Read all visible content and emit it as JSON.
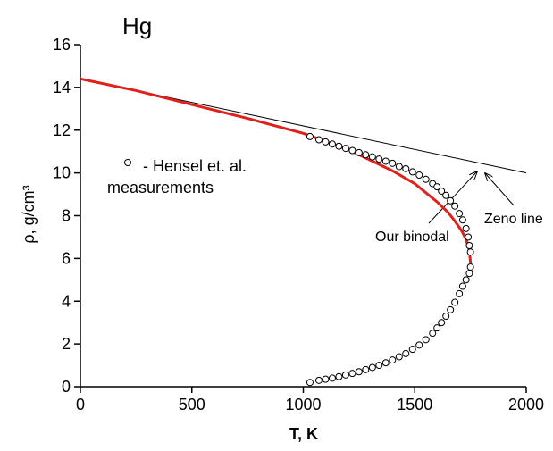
{
  "chart_data": {
    "type": "scatter",
    "title": "Hg",
    "xlabel": "T, K",
    "ylabel": "ρ, g/cm³",
    "xlim": [
      0,
      2000
    ],
    "xticks": [
      0,
      500,
      1000,
      1500,
      2000
    ],
    "ylim": [
      0,
      16
    ],
    "yticks": [
      0,
      2,
      4,
      6,
      8,
      10,
      12,
      14,
      16
    ],
    "annotations": [
      "Our binodal",
      "Zeno line"
    ],
    "series": [
      {
        "mode": "line",
        "color": "#000000",
        "x": [
          0,
          2000
        ],
        "values": [
          14.4,
          10.0
        ]
      },
      {
        "mode": "line",
        "color": "#e0201b",
        "x": [
          0,
          250,
          500,
          750,
          1000,
          1200,
          1400,
          1500,
          1600,
          1650,
          1680,
          1710,
          1730,
          1745,
          1750
        ],
        "values": [
          14.4,
          13.85,
          13.2,
          12.55,
          11.85,
          11.1,
          10.1,
          9.5,
          8.65,
          8.15,
          7.75,
          7.3,
          6.9,
          6.4,
          5.8
        ]
      },
      {
        "mode": "markers",
        "name": "- Hensel et. al. measurements",
        "color": "#000000",
        "x": [
          1030,
          1070,
          1100,
          1130,
          1160,
          1190,
          1220,
          1250,
          1280,
          1310,
          1340,
          1370,
          1400,
          1430,
          1460,
          1490,
          1520,
          1550,
          1580,
          1600,
          1620,
          1640,
          1660,
          1680,
          1700,
          1715,
          1730,
          1740,
          1745,
          1750,
          1750,
          1745,
          1730,
          1715,
          1700,
          1680,
          1660,
          1640,
          1620,
          1600,
          1580,
          1550,
          1520,
          1490,
          1460,
          1430,
          1400,
          1370,
          1340,
          1310,
          1280,
          1250,
          1220,
          1190,
          1160,
          1130,
          1100,
          1070,
          1030
        ],
        "values": [
          11.7,
          11.55,
          11.45,
          11.35,
          11.25,
          11.15,
          11.05,
          10.95,
          10.85,
          10.75,
          10.65,
          10.55,
          10.45,
          10.3,
          10.2,
          10.05,
          9.9,
          9.7,
          9.5,
          9.35,
          9.15,
          8.95,
          8.7,
          8.45,
          8.1,
          7.8,
          7.4,
          7.0,
          6.6,
          6.3,
          5.6,
          5.3,
          5.0,
          4.7,
          4.35,
          3.95,
          3.6,
          3.3,
          3.0,
          2.75,
          2.5,
          2.2,
          1.95,
          1.75,
          1.55,
          1.4,
          1.25,
          1.12,
          1.0,
          0.9,
          0.8,
          0.7,
          0.62,
          0.55,
          0.47,
          0.4,
          0.35,
          0.3,
          0.2
        ]
      }
    ]
  }
}
